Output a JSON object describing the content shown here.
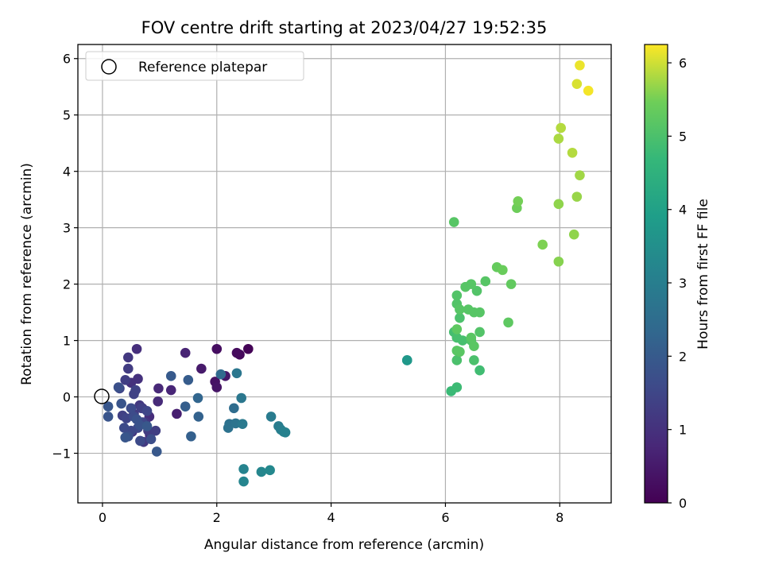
{
  "chart_data": {
    "type": "scatter",
    "title": "FOV centre drift starting at 2023/04/27 19:52:35",
    "xlabel": "Angular distance from reference (arcmin)",
    "ylabel": "Rotation from reference (arcmin)",
    "xlim": [
      -0.43,
      8.9
    ],
    "ylim": [
      -1.88,
      6.25
    ],
    "xticks": [
      "0",
      "2",
      "4",
      "6",
      "8"
    ],
    "yticks": [
      "−1",
      "0",
      "1",
      "2",
      "3",
      "4",
      "5",
      "6"
    ],
    "grid": true,
    "legend": {
      "position": "top-left",
      "entries": [
        "Reference platepar"
      ]
    },
    "reference_point": {
      "x": 0,
      "y": 0
    },
    "colorbar": {
      "label": "Hours from first FF file",
      "range": [
        0,
        6.25
      ],
      "ticks": [
        "0",
        "1",
        "2",
        "3",
        "4",
        "5",
        "6"
      ],
      "colormap": "viridis"
    },
    "points": [
      [
        2.55,
        0.85,
        0.05
      ],
      [
        2.4,
        0.75,
        0.15
      ],
      [
        2.35,
        0.78,
        0.2
      ],
      [
        2.0,
        0.85,
        0.25
      ],
      [
        1.97,
        0.27,
        0.35
      ],
      [
        2.0,
        0.17,
        0.4
      ],
      [
        2.15,
        0.37,
        0.45
      ],
      [
        1.73,
        0.5,
        0.5
      ],
      [
        1.3,
        -0.3,
        0.6
      ],
      [
        1.45,
        0.78,
        0.7
      ],
      [
        1.2,
        0.12,
        0.75
      ],
      [
        0.98,
        0.15,
        0.8
      ],
      [
        0.97,
        -0.08,
        0.85
      ],
      [
        0.82,
        -0.35,
        0.9
      ],
      [
        0.6,
        0.85,
        0.95
      ],
      [
        0.83,
        -0.68,
        0.95
      ],
      [
        0.62,
        0.32,
        1.0
      ],
      [
        0.5,
        0.25,
        1.0
      ],
      [
        0.7,
        -0.2,
        1.05
      ],
      [
        0.75,
        -0.45,
        1.1
      ],
      [
        0.52,
        -0.62,
        1.1
      ],
      [
        0.65,
        -0.15,
        1.15
      ],
      [
        0.45,
        0.7,
        1.15
      ],
      [
        0.55,
        -0.3,
        1.2
      ],
      [
        0.72,
        -0.8,
        1.2
      ],
      [
        0.45,
        0.5,
        1.25
      ],
      [
        0.8,
        -0.6,
        1.25
      ],
      [
        0.93,
        -0.6,
        1.3
      ],
      [
        0.4,
        0.3,
        1.3
      ],
      [
        0.35,
        -0.33,
        1.35
      ],
      [
        0.68,
        -0.2,
        1.35
      ],
      [
        0.58,
        0.12,
        1.4
      ],
      [
        0.55,
        0.05,
        1.4
      ],
      [
        0.42,
        -0.38,
        1.45
      ],
      [
        0.3,
        0.15,
        1.45
      ],
      [
        0.7,
        -0.45,
        1.5
      ],
      [
        0.78,
        -0.25,
        1.5
      ],
      [
        0.5,
        -0.6,
        1.55
      ],
      [
        0.62,
        -0.55,
        1.55
      ],
      [
        0.66,
        -0.78,
        1.6
      ],
      [
        0.38,
        -0.55,
        1.6
      ],
      [
        0.5,
        -0.2,
        1.65
      ],
      [
        0.55,
        -0.35,
        1.65
      ],
      [
        0.85,
        -0.75,
        1.7
      ],
      [
        0.28,
        0.17,
        1.75
      ],
      [
        0.45,
        -0.7,
        1.75
      ],
      [
        0.65,
        -0.5,
        1.8
      ],
      [
        0.6,
        -0.4,
        1.8
      ],
      [
        0.1,
        -0.35,
        1.85
      ],
      [
        0.33,
        -0.12,
        1.85
      ],
      [
        0.4,
        -0.72,
        1.9
      ],
      [
        0.1,
        -0.17,
        1.9
      ],
      [
        0.95,
        -0.97,
        1.95
      ],
      [
        0.78,
        -0.52,
        1.95
      ],
      [
        1.2,
        0.37,
        2.0
      ],
      [
        1.5,
        0.3,
        2.05
      ],
      [
        1.45,
        -0.17,
        2.1
      ],
      [
        1.55,
        -0.7,
        2.15
      ],
      [
        1.68,
        -0.35,
        2.2
      ],
      [
        1.67,
        -0.02,
        2.3
      ],
      [
        2.07,
        0.4,
        2.4
      ],
      [
        2.3,
        -0.2,
        2.5
      ],
      [
        2.22,
        -0.48,
        2.6
      ],
      [
        2.2,
        -0.55,
        2.65
      ],
      [
        2.33,
        -0.47,
        2.7
      ],
      [
        2.35,
        0.42,
        2.75
      ],
      [
        2.43,
        -0.02,
        2.8
      ],
      [
        2.45,
        -0.48,
        2.85
      ],
      [
        2.95,
        -0.35,
        2.9
      ],
      [
        3.08,
        -0.52,
        2.95
      ],
      [
        3.12,
        -0.58,
        3.0
      ],
      [
        3.17,
        -0.62,
        3.05
      ],
      [
        3.2,
        -0.63,
        3.1
      ],
      [
        2.47,
        -1.28,
        3.15
      ],
      [
        2.47,
        -1.5,
        3.2
      ],
      [
        2.78,
        -1.33,
        3.25
      ],
      [
        2.93,
        -1.3,
        3.3
      ],
      [
        5.33,
        0.65,
        3.7
      ],
      [
        5.33,
        0.65,
        3.75
      ],
      [
        6.1,
        0.1,
        4.75
      ],
      [
        6.2,
        0.17,
        4.8
      ],
      [
        6.6,
        0.47,
        4.85
      ],
      [
        6.15,
        1.15,
        4.9
      ],
      [
        6.2,
        1.05,
        4.95
      ],
      [
        6.3,
        1.0,
        4.95
      ],
      [
        6.25,
        1.4,
        5.0
      ],
      [
        6.2,
        0.65,
        5.0
      ],
      [
        6.5,
        0.65,
        5.0
      ],
      [
        6.45,
        1.0,
        5.05
      ],
      [
        6.6,
        1.15,
        5.1
      ],
      [
        6.2,
        1.65,
        5.1
      ],
      [
        6.2,
        1.8,
        5.1
      ],
      [
        6.55,
        1.88,
        5.1
      ],
      [
        6.25,
        1.55,
        5.15
      ],
      [
        6.4,
        1.55,
        5.15
      ],
      [
        6.5,
        1.5,
        5.15
      ],
      [
        6.6,
        1.5,
        5.15
      ],
      [
        6.35,
        1.95,
        5.15
      ],
      [
        6.45,
        2.0,
        5.15
      ],
      [
        6.7,
        2.05,
        5.15
      ],
      [
        6.15,
        3.1,
        5.15
      ],
      [
        6.25,
        0.8,
        5.2
      ],
      [
        6.2,
        0.82,
        5.2
      ],
      [
        6.5,
        0.9,
        5.2
      ],
      [
        6.45,
        1.05,
        5.2
      ],
      [
        6.2,
        1.2,
        5.25
      ],
      [
        7.1,
        1.32,
        5.25
      ],
      [
        7.15,
        2.0,
        5.3
      ],
      [
        6.9,
        2.3,
        5.35
      ],
      [
        7.0,
        2.25,
        5.4
      ],
      [
        7.25,
        3.35,
        5.45
      ],
      [
        7.27,
        3.47,
        5.5
      ],
      [
        7.7,
        2.7,
        5.55
      ],
      [
        7.98,
        2.4,
        5.6
      ],
      [
        7.98,
        3.42,
        5.65
      ],
      [
        8.25,
        2.88,
        5.65
      ],
      [
        8.3,
        3.55,
        5.7
      ],
      [
        8.35,
        3.93,
        5.75
      ],
      [
        7.98,
        4.58,
        5.8
      ],
      [
        8.02,
        4.77,
        5.85
      ],
      [
        8.22,
        4.33,
        5.85
      ],
      [
        8.3,
        5.55,
        6.05
      ],
      [
        8.35,
        5.88,
        6.15
      ],
      [
        8.5,
        5.43,
        6.2
      ]
    ]
  }
}
